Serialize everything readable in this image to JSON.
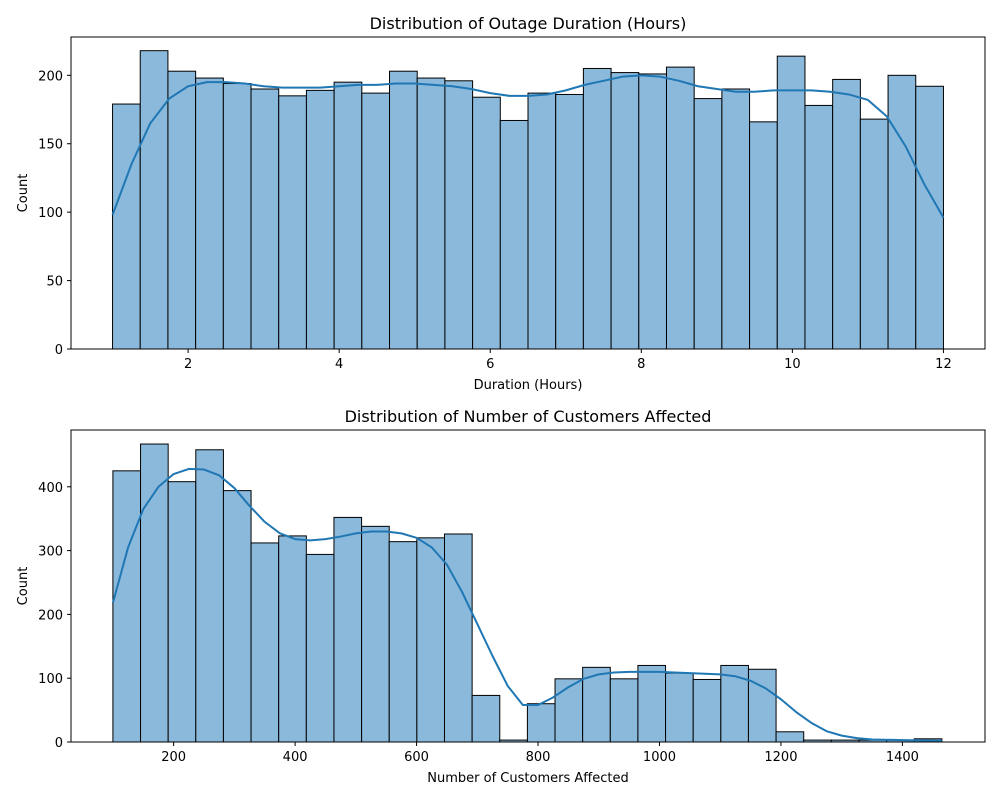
{
  "chart_data": [
    {
      "type": "bar",
      "subtype": "histogram",
      "title": "Distribution of Outage Duration (Hours)",
      "xlabel": "Duration (Hours)",
      "ylabel": "Count",
      "xlim": [
        0.45,
        12.55
      ],
      "ylim": [
        0,
        228
      ],
      "xticks": [
        2,
        4,
        6,
        8,
        10,
        12
      ],
      "yticks": [
        0,
        50,
        100,
        150,
        200
      ],
      "bin_edges": [
        1.0,
        1.3667,
        1.7333,
        2.1,
        2.4667,
        2.8333,
        3.2,
        3.5667,
        3.9333,
        4.3,
        4.6667,
        5.0333,
        5.4,
        5.7667,
        6.1333,
        6.5,
        6.8667,
        7.2333,
        7.6,
        7.9667,
        8.3333,
        8.7,
        9.0667,
        9.4333,
        9.8,
        10.1667,
        10.5333,
        10.9,
        11.2667,
        11.6333,
        12.0
      ],
      "counts": [
        179,
        218,
        203,
        198,
        194,
        190,
        185,
        189,
        195,
        187,
        203,
        198,
        196,
        184,
        167,
        187,
        186,
        205,
        202,
        201,
        206,
        183,
        190,
        166,
        214,
        178,
        197,
        168,
        200,
        192
      ],
      "kde": {
        "x": [
          1.0,
          1.25,
          1.5,
          1.75,
          2.0,
          2.25,
          2.5,
          2.75,
          3.0,
          3.25,
          3.5,
          3.75,
          4.0,
          4.25,
          4.5,
          4.75,
          5.0,
          5.25,
          5.5,
          5.75,
          6.0,
          6.25,
          6.5,
          6.75,
          7.0,
          7.25,
          7.5,
          7.75,
          8.0,
          8.25,
          8.5,
          8.75,
          9.0,
          9.25,
          9.5,
          9.75,
          10.0,
          10.25,
          10.5,
          10.75,
          11.0,
          11.25,
          11.5,
          11.75,
          12.0
        ],
        "y": [
          98,
          135,
          165,
          183,
          192,
          195,
          195,
          194,
          192,
          191,
          191,
          191,
          192,
          193,
          193,
          194,
          194,
          193,
          192,
          190,
          187,
          185,
          185,
          186,
          189,
          193,
          196,
          199,
          200,
          199,
          196,
          192,
          190,
          188,
          188,
          189,
          189,
          189,
          188,
          186,
          182,
          170,
          148,
          120,
          96
        ]
      },
      "bar_color": "#8bb9dc",
      "line_color": "#1f77b4",
      "grid": false
    },
    {
      "type": "bar",
      "subtype": "histogram",
      "title": "Distribution of Number of Customers Affected",
      "xlabel": "Number of Customers Affected",
      "ylabel": "Count",
      "xlim": [
        31,
        1536
      ],
      "ylim": [
        0,
        489
      ],
      "xticks": [
        200,
        400,
        600,
        800,
        1000,
        1200,
        1400
      ],
      "yticks": [
        0,
        100,
        200,
        300,
        400
      ],
      "bin_edges": [
        100,
        145.5,
        191,
        236.5,
        282,
        327.5,
        373,
        418.5,
        464,
        509.5,
        555,
        600.5,
        646,
        691.5,
        737,
        782.5,
        828,
        873.5,
        919,
        964.5,
        1010,
        1055.5,
        1101,
        1146.5,
        1192,
        1237.5,
        1283,
        1328.5,
        1374,
        1419.5,
        1465
      ],
      "counts": [
        425,
        467,
        408,
        458,
        394,
        312,
        323,
        294,
        352,
        338,
        314,
        320,
        326,
        73,
        3,
        60,
        99,
        117,
        99,
        120,
        108,
        98,
        120,
        114,
        16,
        3,
        3,
        3,
        3,
        5
      ],
      "kde": {
        "x": [
          100,
          125,
          150,
          175,
          200,
          225,
          250,
          275,
          300,
          325,
          350,
          375,
          400,
          425,
          450,
          475,
          500,
          525,
          550,
          575,
          600,
          625,
          650,
          675,
          700,
          725,
          750,
          775,
          800,
          825,
          850,
          875,
          900,
          925,
          950,
          975,
          1000,
          1025,
          1050,
          1075,
          1100,
          1125,
          1150,
          1175,
          1200,
          1225,
          1250,
          1275,
          1300,
          1325,
          1350,
          1400,
          1465
        ],
        "y": [
          218,
          305,
          365,
          400,
          420,
          428,
          427,
          418,
          398,
          370,
          345,
          327,
          318,
          316,
          318,
          322,
          327,
          330,
          330,
          327,
          320,
          305,
          278,
          235,
          185,
          135,
          88,
          58,
          58,
          70,
          86,
          99,
          106,
          109,
          110,
          110,
          110,
          109,
          108,
          107,
          106,
          103,
          96,
          84,
          67,
          47,
          30,
          17,
          10,
          6,
          4,
          3,
          2
        ]
      },
      "bar_color": "#8bb9dc",
      "line_color": "#1f77b4",
      "grid": false
    }
  ]
}
